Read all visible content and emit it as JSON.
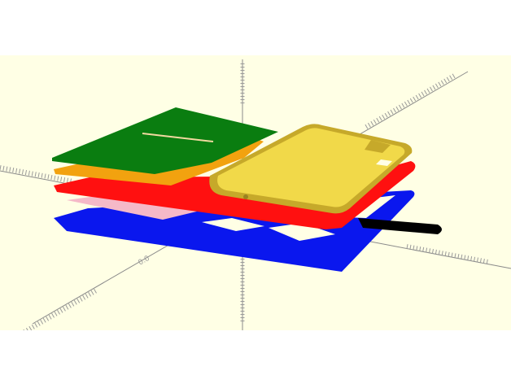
{
  "app": {
    "view": "3d-preview"
  },
  "colors": {
    "page_bg": "#ffffff",
    "viewport_bg": "#ffffe5",
    "axis": "#8a8a8a",
    "ruler": "#9a9a9a",
    "green_layer": "#0a7d10",
    "orange_layer": "#f2a20f",
    "red_layer": "#ff1010",
    "pink_layer": "#f5b9c8",
    "blue_layer": "#0a17ee",
    "phone_case": "#f1d949",
    "phone_case_dark": "#c6a92a",
    "strap": "#000000"
  },
  "layers": [
    {
      "name": "green-card-panel",
      "color": "green_layer"
    },
    {
      "name": "orange-card-panel",
      "color": "orange_layer"
    },
    {
      "name": "red-wallet-panel",
      "color": "red_layer"
    },
    {
      "name": "pink-card-panel",
      "color": "pink_layer"
    },
    {
      "name": "blue-base-panel",
      "color": "blue_layer"
    },
    {
      "name": "phone-case-shell",
      "color": "phone_case"
    },
    {
      "name": "wrist-strap",
      "color": "strap"
    }
  ]
}
